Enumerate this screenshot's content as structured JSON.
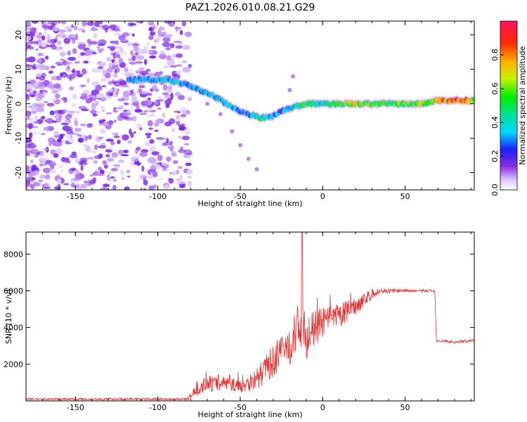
{
  "title": "PAZ1.2026.010.08.21.G29",
  "chart_data": [
    {
      "type": "heatmap",
      "xlabel": "Height of straight line (km)",
      "ylabel": "Frequency (Hz)",
      "xlim": [
        -180,
        92
      ],
      "ylim": [
        -25,
        24
      ],
      "xticks": [
        -150,
        -100,
        -50,
        0,
        50
      ],
      "yticks": [
        -20,
        -10,
        0,
        10,
        20
      ],
      "colorbar": {
        "label": "Normalized spectral amplitude",
        "range": [
          0.0,
          1.0
        ],
        "ticks": [
          "0.0",
          "0.2",
          "0.4",
          "0.6",
          "0.8"
        ]
      },
      "ridge": {
        "x": [
          -115,
          -105,
          -95,
          -85,
          -75,
          -65,
          -55,
          -45,
          -38,
          -32,
          -25,
          -18,
          -10,
          0,
          10,
          20,
          30,
          40,
          50,
          60,
          70,
          80,
          92
        ],
        "y": [
          7,
          7,
          7,
          6,
          4,
          2,
          -1,
          -3,
          -4,
          -4,
          -2,
          -1,
          0,
          0,
          0,
          0,
          0,
          0,
          0,
          0,
          1,
          1,
          1
        ],
        "amplitude": [
          0.3,
          0.35,
          0.4,
          0.35,
          0.35,
          0.4,
          0.35,
          0.3,
          0.45,
          0.35,
          0.3,
          0.4,
          0.5,
          0.4,
          0.55,
          0.7,
          0.6,
          0.55,
          0.6,
          0.6,
          0.65,
          0.9,
          0.7
        ]
      }
    },
    {
      "type": "line",
      "xlabel": "Height of straight line (km)",
      "ylabel": "SNR (10 * v/v)",
      "xlim": [
        -180,
        92
      ],
      "ylim": [
        0,
        9200
      ],
      "xticks": [
        -150,
        -100,
        -50,
        0,
        50
      ],
      "yticks": [
        2000,
        4000,
        6000,
        8000
      ],
      "color": "#e62e2e",
      "envelope": {
        "x": [
          -180,
          -120,
          -82,
          -75,
          -60,
          -50,
          -40,
          -30,
          -20,
          -14,
          -12,
          -10,
          0,
          10,
          20,
          30,
          35,
          50,
          60,
          68,
          69,
          80,
          92
        ],
        "center": [
          100,
          100,
          100,
          800,
          1000,
          800,
          1200,
          2200,
          3000,
          4200,
          4000,
          3500,
          4300,
          4600,
          5200,
          5800,
          6000,
          6000,
          6000,
          6000,
          3300,
          3200,
          3300
        ],
        "noise": [
          60,
          60,
          60,
          450,
          400,
          350,
          600,
          900,
          1100,
          1300,
          1200,
          1200,
          800,
          700,
          500,
          300,
          150,
          80,
          80,
          80,
          80,
          80,
          80
        ]
      },
      "spike": {
        "x": -12.5,
        "y": 9200
      }
    }
  ]
}
